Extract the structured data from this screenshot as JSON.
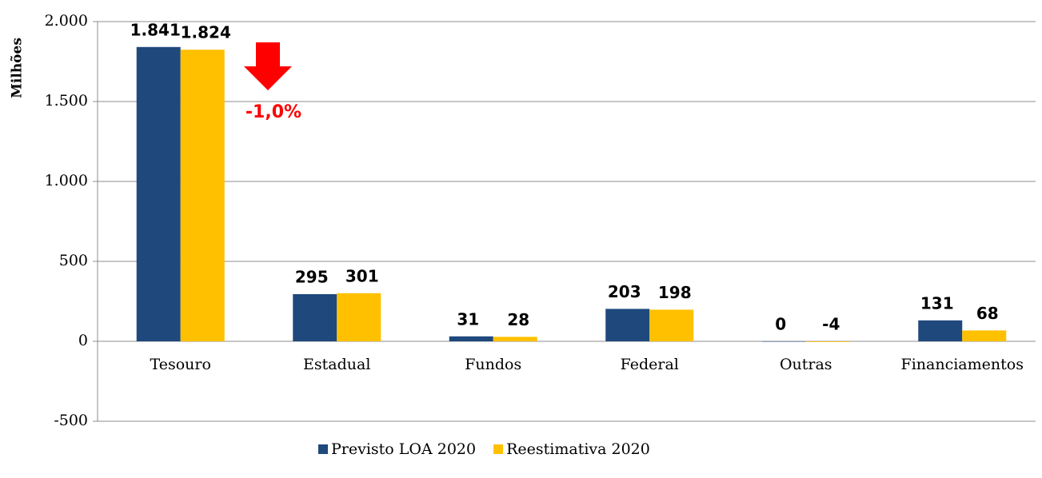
{
  "chart_data": {
    "type": "bar",
    "y_label": "Milhões",
    "annotation": "-1,0%",
    "categories": [
      "Tesouro",
      "Estadual",
      "Fundos",
      "Federal",
      "Outras",
      "Financiamentos"
    ],
    "series": [
      {
        "name": "Previsto LOA 2020",
        "color": "#1f497d",
        "values": [
          1841,
          295,
          31,
          203,
          0,
          131
        ],
        "value_labels": [
          "1.841",
          "295",
          "31",
          "203",
          "0",
          "131"
        ]
      },
      {
        "name": "Reestimativa 2020",
        "color": "#ffc000",
        "values": [
          1824,
          301,
          28,
          198,
          -4,
          68
        ],
        "value_labels": [
          "1.824",
          "301",
          "28",
          "198",
          "-4",
          "68"
        ]
      }
    ],
    "ylim": [
      -500,
      2000
    ],
    "yticks": [
      -500,
      0,
      500,
      {
        "value": 1000,
        "label": "1.000"
      },
      {
        "value": 1500,
        "label": "1.500"
      },
      {
        "value": 2000,
        "label": "2.000"
      }
    ],
    "grid": true,
    "legend": "bottom"
  }
}
